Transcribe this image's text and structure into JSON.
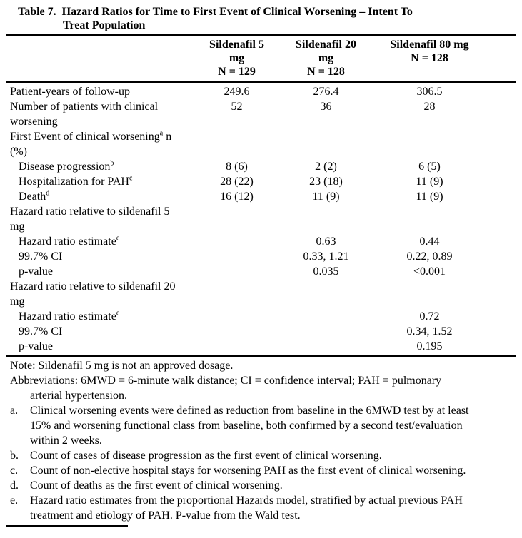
{
  "title": {
    "label": "Table 7.",
    "line1": "Hazard Ratios for Time to First Event of Clinical Worsening – Intent To",
    "line2": "Treat Population"
  },
  "table": {
    "columns": [
      {
        "line1": "Sildenafil 5",
        "line2": "mg",
        "line3": "N = 129"
      },
      {
        "line1": "Sildenafil 20",
        "line2": "mg",
        "line3": "N = 128"
      },
      {
        "line1": "Sildenafil 80 mg",
        "line2": "N = 128",
        "line3": ""
      }
    ],
    "rows": [
      {
        "label": {
          "pre": "Patient-years of follow-up",
          "sup": "",
          "post": ""
        },
        "cells": [
          "249.6",
          "276.4",
          "306.5"
        ]
      },
      {
        "label": {
          "pre": "Number of patients with clinical worsening",
          "sup": "",
          "post": ""
        },
        "cells": [
          "",
          "",
          ""
        ],
        "values_inline": [
          "52",
          "36",
          "28"
        ]
      },
      {
        "label": {
          "pre": "First Event of clinical worsening",
          "sup": "a",
          "post": " n (%)"
        },
        "cells": [
          "",
          "",
          ""
        ]
      },
      {
        "label": {
          "pre": "Disease progression",
          "sup": "b",
          "post": ""
        },
        "cells": [
          "8 (6)",
          "2 (2)",
          "6 (5)"
        ]
      },
      {
        "label": {
          "pre": "Hospitalization for PAH",
          "sup": "c",
          "post": ""
        },
        "cells": [
          "28 (22)",
          "23 (18)",
          "11 (9)"
        ]
      },
      {
        "label": {
          "pre": "Death",
          "sup": "d",
          "post": ""
        },
        "cells": [
          "16 (12)",
          "11 (9)",
          "11 (9)"
        ]
      },
      {
        "label": {
          "pre": "Hazard ratio relative to sildenafil 5 mg",
          "sup": "",
          "post": ""
        },
        "cells": [
          "",
          "",
          ""
        ]
      },
      {
        "label": {
          "pre": "Hazard ratio estimate",
          "sup": "e",
          "post": ""
        },
        "cells": [
          "",
          "0.63",
          "0.44"
        ]
      },
      {
        "label": {
          "pre": "99.7% CI",
          "sup": "",
          "post": ""
        },
        "cells": [
          "",
          "0.33, 1.21",
          "0.22, 0.89"
        ]
      },
      {
        "label": {
          "pre": "p-value",
          "sup": "",
          "post": ""
        },
        "cells": [
          "",
          "0.035",
          "<0.001"
        ]
      },
      {
        "label": {
          "pre": "Hazard ratio relative to sildenafil 20 mg",
          "sup": "",
          "post": ""
        },
        "cells": [
          "",
          "",
          ""
        ]
      },
      {
        "label": {
          "pre": "Hazard ratio estimate",
          "sup": "e",
          "post": ""
        },
        "cells": [
          "",
          "",
          "0.72"
        ]
      },
      {
        "label": {
          "pre": "99.7% CI",
          "sup": "",
          "post": ""
        },
        "cells": [
          "",
          "",
          "0.34, 1.52"
        ]
      },
      {
        "label": {
          "pre": "p-value",
          "sup": "",
          "post": ""
        },
        "cells": [
          "",
          "",
          "0.195"
        ]
      }
    ]
  },
  "footnotes": {
    "note": "Note: Sildenafil 5 mg is not an approved dosage.",
    "abbreviations": "Abbreviations: 6MWD = 6-minute walk distance; CI = confidence interval; PAH = pulmonary arterial hypertension.",
    "items": [
      {
        "letter": "a.",
        "text": "Clinical worsening events were defined as reduction from baseline in the 6MWD test by at least 15% and worsening functional class from baseline, both confirmed by a second test/evaluation within 2 weeks."
      },
      {
        "letter": "b.",
        "text": "Count of cases of disease progression as the first event of clinical worsening."
      },
      {
        "letter": "c.",
        "text": "Count of non-elective hospital stays for worsening PAH as the first event of clinical worsening."
      },
      {
        "letter": "d.",
        "text": "Count of deaths as the first event of clinical worsening."
      },
      {
        "letter": "e.",
        "text": "Hazard ratio estimates from the proportional Hazards model, stratified by actual previous PAH treatment and etiology of PAH. P-value from the Wald test."
      }
    ]
  }
}
